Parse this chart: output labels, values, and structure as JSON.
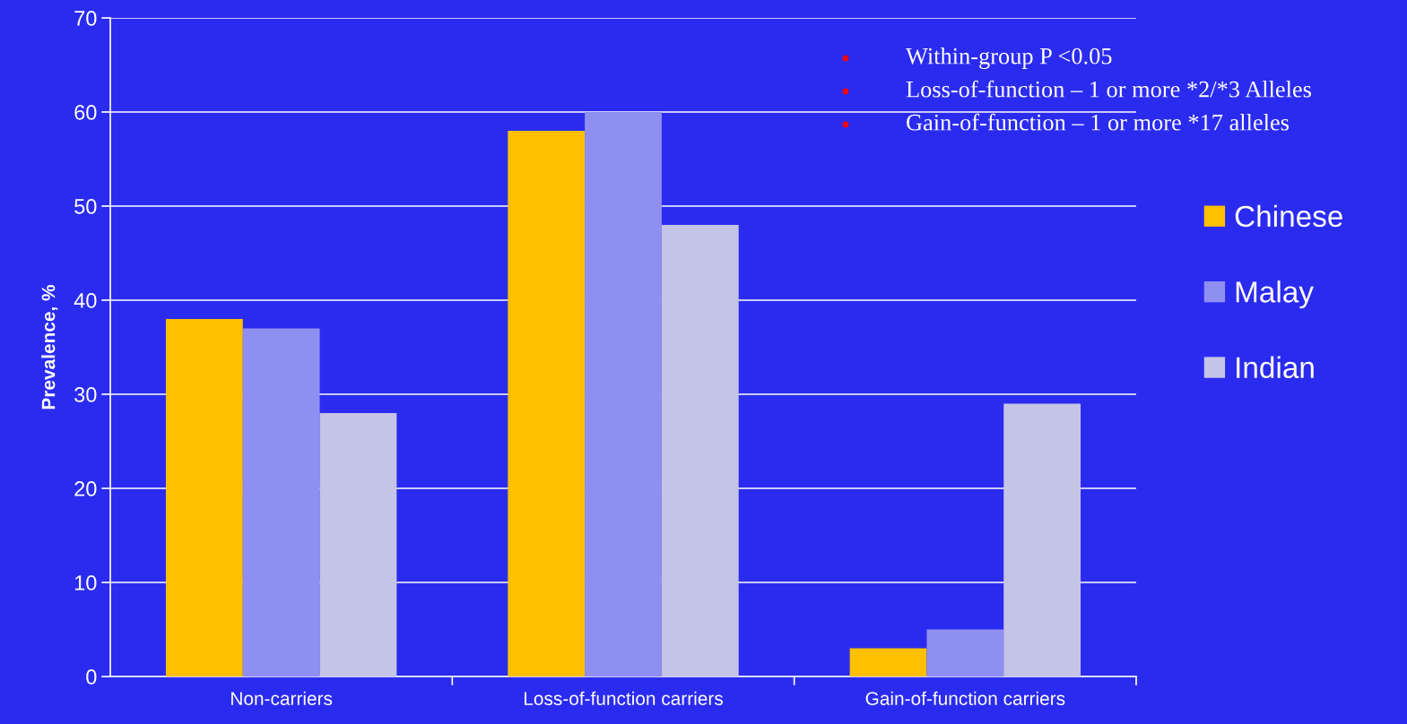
{
  "chart_data": {
    "type": "bar",
    "ylabel": "Prevalence, %",
    "categories": [
      "Non-carriers",
      "Loss-of-function carriers",
      "Gain-of-function carriers"
    ],
    "series": [
      {
        "name": "Chinese",
        "color": "#ffc000",
        "values": [
          38,
          58,
          3
        ]
      },
      {
        "name": "Malay",
        "color": "#8f8ff2",
        "values": [
          37,
          60,
          5
        ]
      },
      {
        "name": "Indian",
        "color": "#c4c4e6",
        "values": [
          28,
          48,
          29
        ]
      }
    ],
    "ylim": [
      0,
      70
    ],
    "yticks": [
      0,
      10,
      20,
      30,
      40,
      50,
      60,
      70
    ],
    "grid": "y",
    "legend": "right",
    "annotations": [
      "Within-group P <0.05",
      "Loss-of-function – 1 or more *2/*3 Alleles",
      "Gain-of-function – 1 or more *17 alleles"
    ]
  }
}
